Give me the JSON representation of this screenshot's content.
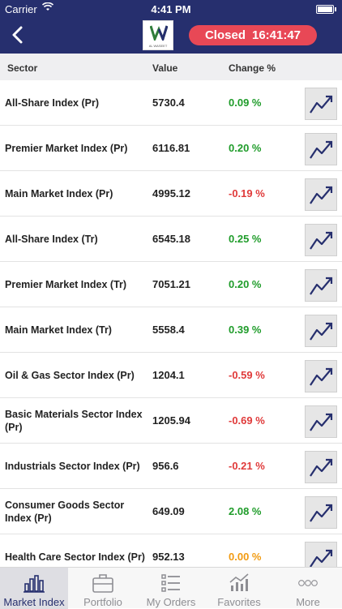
{
  "status_bar": {
    "carrier": "Carrier",
    "time": "4:41 PM"
  },
  "navbar": {
    "market_state": "Closed",
    "market_time": "16:41:47",
    "logo_text": "AL WASEET"
  },
  "table": {
    "headers": {
      "sector": "Sector",
      "value": "Value",
      "change": "Change %"
    },
    "rows": [
      {
        "sector": "All-Share Index (Pr)",
        "value": "5730.4",
        "change": "0.09 %",
        "trend": "pos"
      },
      {
        "sector": "Premier Market Index  (Pr)",
        "value": "6116.81",
        "change": "0.20 %",
        "trend": "pos"
      },
      {
        "sector": "Main Market Index (Pr)",
        "value": "4995.12",
        "change": "-0.19 %",
        "trend": "neg"
      },
      {
        "sector": "All-Share Index  (Tr)",
        "value": "6545.18",
        "change": "0.25 %",
        "trend": "pos"
      },
      {
        "sector": "Premier Market Index (Tr)",
        "value": "7051.21",
        "change": "0.20 %",
        "trend": "pos"
      },
      {
        "sector": "Main Market Index (Tr)",
        "value": "5558.4",
        "change": "0.39 %",
        "trend": "pos"
      },
      {
        "sector": "Oil & Gas Sector Index (Pr)",
        "value": "1204.1",
        "change": "-0.59 %",
        "trend": "neg"
      },
      {
        "sector": "Basic Materials Sector Index (Pr)",
        "value": "1205.94",
        "change": "-0.69 %",
        "trend": "neg"
      },
      {
        "sector": "Industrials Sector Index (Pr)",
        "value": "956.6",
        "change": "-0.21 %",
        "trend": "neg"
      },
      {
        "sector": "Consumer Goods Sector Index (Pr)",
        "value": "649.09",
        "change": "2.08 %",
        "trend": "pos"
      },
      {
        "sector": "Health Care Sector Index (Pr)",
        "value": "952.13",
        "change": "0.00 %",
        "trend": "neu"
      }
    ]
  },
  "tabbar": {
    "tabs": [
      {
        "label": "Market Index",
        "icon": "bar-chart-icon"
      },
      {
        "label": "Portfolio",
        "icon": "briefcase-icon"
      },
      {
        "label": "My Orders",
        "icon": "list-icon"
      },
      {
        "label": "Favorites",
        "icon": "trend-chart-icon"
      },
      {
        "label": "More",
        "icon": "more-dots-icon"
      }
    ]
  },
  "colors": {
    "navbar": "#262f6e",
    "status_pill": "#e84856",
    "positive": "#1f9c2a",
    "negative": "#e03a3a",
    "neutral": "#f29b12"
  }
}
